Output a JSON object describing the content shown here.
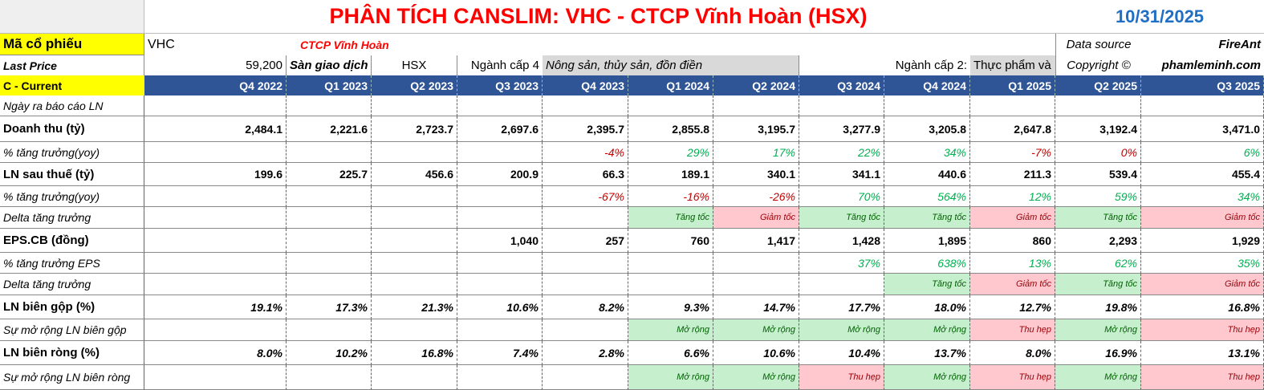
{
  "header": {
    "title": "PHÂN TÍCH CANSLIM: VHC - CTCP Vĩnh Hoàn (HSX)",
    "date": "10/31/2025"
  },
  "info": {
    "ticker_label": "Mã cổ phiếu",
    "ticker": "VHC",
    "company": "CTCP Vĩnh Hoàn",
    "source_label": "Data source",
    "source": "FireAnt",
    "price_label": "Last Price",
    "price": "59,200",
    "exchange_label": "Sàn giao dịch",
    "exchange": "HSX",
    "industry4_label": "Ngành cấp 4",
    "industry4": "Nông sản, thủy sản, đồn điền",
    "industry2_label": "Ngành cấp 2:",
    "industry2": "Thực phẩm và",
    "copyright": "Copyright ©",
    "site": "phamleminh.com"
  },
  "table": {
    "corner": "C - Current",
    "header_color": "#2f5597",
    "columns": [
      "Q4 2022",
      "Q1 2023",
      "Q2 2023",
      "Q3 2023",
      "Q4 2023",
      "Q1 2024",
      "Q2 2024",
      "Q3 2024",
      "Q4 2024",
      "Q1 2025",
      "Q2 2025",
      "Q3 2025"
    ],
    "rows": [
      {
        "label": "Ngày ra báo cáo LN",
        "cells": [
          null,
          null,
          null,
          null,
          null,
          null,
          null,
          null,
          null,
          null,
          null,
          null
        ]
      },
      {
        "label": "Doanh thu (tỷ)",
        "cells": [
          "2,484.1",
          "2,221.6",
          "2,723.7",
          "2,697.6",
          "2,395.7",
          "2,855.8",
          "3,195.7",
          "3,277.9",
          "3,205.8",
          "2,647.8",
          "3,192.4",
          "3,471.0"
        ]
      },
      {
        "label": "% tăng trưởng(yoy)",
        "cells": [
          null,
          null,
          null,
          null,
          "-4%",
          "29%",
          "17%",
          "22%",
          "34%",
          "-7%",
          "0%",
          "6%"
        ],
        "colors": [
          null,
          null,
          null,
          null,
          "#c00000",
          "#00b050",
          "#00b050",
          "#00b050",
          "#00b050",
          "#c00000",
          "#c00000",
          "#00b050"
        ]
      },
      {
        "label": "LN sau thuế (tỷ)",
        "cells": [
          "199.6",
          "225.7",
          "456.6",
          "200.9",
          "66.3",
          "189.1",
          "340.1",
          "341.1",
          "440.6",
          "211.3",
          "539.4",
          "455.4"
        ]
      },
      {
        "label": "% tăng trưởng(yoy)",
        "cells": [
          null,
          null,
          null,
          null,
          "-67%",
          "-16%",
          "-26%",
          "70%",
          "564%",
          "12%",
          "59%",
          "34%"
        ],
        "colors": [
          null,
          null,
          null,
          null,
          "#c00000",
          "#c00000",
          "#c00000",
          "#00b050",
          "#00b050",
          "#00b050",
          "#00b050",
          "#00b050"
        ]
      },
      {
        "label": "Delta tăng trưởng",
        "cells": [
          null,
          null,
          null,
          null,
          null,
          "Tăng tốc",
          "Giảm tốc",
          "Tăng tốc",
          "Tăng tốc",
          "Giảm tốc",
          "Tăng tốc",
          "Giảm tốc"
        ],
        "colors": [
          null,
          null,
          null,
          null,
          null,
          "#006100",
          "#9c0006",
          "#006100",
          "#006100",
          "#9c0006",
          "#006100",
          "#9c0006"
        ],
        "fills": [
          null,
          null,
          null,
          null,
          null,
          "#c6efce",
          "#ffc7ce",
          "#c6efce",
          "#c6efce",
          "#ffc7ce",
          "#c6efce",
          "#ffc7ce"
        ]
      },
      {
        "label": "EPS.CB (đồng)",
        "cells": [
          null,
          null,
          null,
          "1,040",
          "257",
          "760",
          "1,417",
          "1,428",
          "1,895",
          "860",
          "2,293",
          "1,929"
        ]
      },
      {
        "label": "% tăng trưởng EPS",
        "cells": [
          null,
          null,
          null,
          null,
          null,
          null,
          null,
          "37%",
          "638%",
          "13%",
          "62%",
          "35%"
        ],
        "colors": [
          null,
          null,
          null,
          null,
          null,
          null,
          null,
          "#00b050",
          "#00b050",
          "#00b050",
          "#00b050",
          "#00b050"
        ]
      },
      {
        "label": "Delta tăng trưởng",
        "cells": [
          null,
          null,
          null,
          null,
          null,
          null,
          null,
          null,
          "Tăng tốc",
          "Giảm tốc",
          "Tăng tốc",
          "Giảm tốc"
        ],
        "colors": [
          null,
          null,
          null,
          null,
          null,
          null,
          null,
          null,
          "#006100",
          "#9c0006",
          "#006100",
          "#9c0006"
        ],
        "fills": [
          null,
          null,
          null,
          null,
          null,
          null,
          null,
          null,
          "#c6efce",
          "#ffc7ce",
          "#c6efce",
          "#ffc7ce"
        ]
      },
      {
        "label": "LN biên gộp (%)",
        "cells": [
          "19.1%",
          "17.3%",
          "21.3%",
          "10.6%",
          "8.2%",
          "9.3%",
          "14.7%",
          "17.7%",
          "18.0%",
          "12.7%",
          "19.8%",
          "16.8%"
        ]
      },
      {
        "label": "Sự mở rộng LN biên gộp",
        "cells": [
          null,
          null,
          null,
          null,
          null,
          "Mở rộng",
          "Mở rộng",
          "Mở rộng",
          "Mở rộng",
          "Thu hẹp",
          "Mở rộng",
          "Thu hẹp"
        ],
        "colors": [
          null,
          null,
          null,
          null,
          null,
          "#006100",
          "#006100",
          "#006100",
          "#006100",
          "#9c0006",
          "#006100",
          "#9c0006"
        ],
        "fills": [
          null,
          null,
          null,
          null,
          null,
          "#c6efce",
          "#c6efce",
          "#c6efce",
          "#c6efce",
          "#ffc7ce",
          "#c6efce",
          "#ffc7ce"
        ]
      },
      {
        "label": "LN biên ròng (%)",
        "cells": [
          "8.0%",
          "10.2%",
          "16.8%",
          "7.4%",
          "2.8%",
          "6.6%",
          "10.6%",
          "10.4%",
          "13.7%",
          "8.0%",
          "16.9%",
          "13.1%"
        ]
      },
      {
        "label": "Sự mở rộng LN biên ròng",
        "cells": [
          null,
          null,
          null,
          null,
          null,
          "Mở rộng",
          "Mở rộng",
          "Thu hẹp",
          "Mở rộng",
          "Thu hẹp",
          "Mở rộng",
          "Thu hẹp"
        ],
        "colors": [
          null,
          null,
          null,
          null,
          null,
          "#006100",
          "#006100",
          "#9c0006",
          "#006100",
          "#9c0006",
          "#006100",
          "#9c0006"
        ],
        "fills": [
          null,
          null,
          null,
          null,
          null,
          "#c6efce",
          "#c6efce",
          "#ffc7ce",
          "#c6efce",
          "#ffc7ce",
          "#c6efce",
          "#ffc7ce"
        ]
      }
    ]
  }
}
